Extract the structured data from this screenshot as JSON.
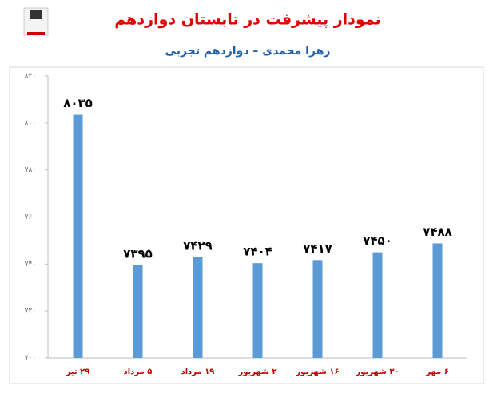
{
  "chart_data": {
    "type": "bar",
    "title": "نمودار پیشرفت در تابستان دوازدهم",
    "subtitle": "زهرا محمدی – دوازدهم تجربی",
    "categories": [
      "۲۹ تیر",
      "۵ مرداد",
      "۱۹ مرداد",
      "۲ شهریور",
      "۱۶ شهریور",
      "۳۰ شهریور",
      "۶ مهر"
    ],
    "values": [
      8035,
      7395,
      7429,
      7404,
      7417,
      7450,
      7488
    ],
    "value_labels": [
      "۸۰۳۵",
      "۷۳۹۵",
      "۷۴۲۹",
      "۷۴۰۴",
      "۷۴۱۷",
      "۷۴۵۰",
      "۷۴۸۸"
    ],
    "color": "#5b9bd5",
    "ylim": [
      7000,
      8200
    ],
    "yticks": [
      {
        "value": 7000,
        "label": "۷۰۰۰"
      },
      {
        "value": 7200,
        "label": "۷۲۰۰"
      },
      {
        "value": 7400,
        "label": "۷۴۰۰"
      },
      {
        "value": 7600,
        "label": "۷۶۰۰"
      },
      {
        "value": 7800,
        "label": "۷۸۰۰"
      },
      {
        "value": 8000,
        "label": "۸۰۰۰"
      },
      {
        "value": 8200,
        "label": "۸۲۰۰"
      }
    ],
    "grid": false
  }
}
